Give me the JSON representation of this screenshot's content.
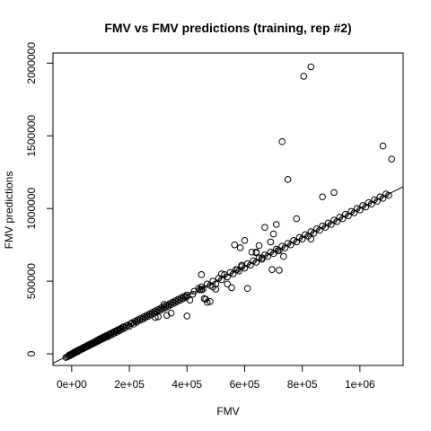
{
  "chart_data": {
    "type": "scatter",
    "title": "FMV vs FMV predictions (training, rep #2)",
    "xlabel": "FMV",
    "ylabel": "FMV predictions",
    "xlim": [
      -65000,
      1150000
    ],
    "ylim": [
      -80000,
      2070000
    ],
    "x_ticks": [
      {
        "value": 0,
        "label": "0e+00"
      },
      {
        "value": 200000,
        "label": "2e+05"
      },
      {
        "value": 400000,
        "label": "4e+05"
      },
      {
        "value": 600000,
        "label": "6e+05"
      },
      {
        "value": 800000,
        "label": "8e+05"
      },
      {
        "value": 1000000,
        "label": "1e+06"
      }
    ],
    "y_ticks": [
      {
        "value": 0,
        "label": "0"
      },
      {
        "value": 500000,
        "label": "500000"
      },
      {
        "value": 1000000,
        "label": "1000000"
      },
      {
        "value": 1500000,
        "label": "1500000"
      },
      {
        "value": 2000000,
        "label": "2000000"
      }
    ],
    "grid": false,
    "marker": "open-circle",
    "reference_line": {
      "intercept": 0,
      "slope": 1.0
    },
    "points": [
      [
        -20000,
        -25000
      ],
      [
        -15000,
        -20000
      ],
      [
        -10000,
        -15000
      ],
      [
        -8000,
        -8000
      ],
      [
        -5000,
        -12000
      ],
      [
        -2000,
        -5000
      ],
      [
        0,
        0
      ],
      [
        3000,
        -3000
      ],
      [
        5000,
        6000
      ],
      [
        8000,
        4000
      ],
      [
        10000,
        12000
      ],
      [
        12000,
        8000
      ],
      [
        15000,
        15000
      ],
      [
        18000,
        20000
      ],
      [
        20000,
        14000
      ],
      [
        22000,
        25000
      ],
      [
        25000,
        22000
      ],
      [
        28000,
        30000
      ],
      [
        30000,
        26000
      ],
      [
        33000,
        35000
      ],
      [
        35000,
        32000
      ],
      [
        38000,
        40000
      ],
      [
        40000,
        36000
      ],
      [
        42000,
        45000
      ],
      [
        45000,
        42000
      ],
      [
        48000,
        50000
      ],
      [
        50000,
        46000
      ],
      [
        52000,
        55000
      ],
      [
        55000,
        52000
      ],
      [
        58000,
        60000
      ],
      [
        60000,
        56000
      ],
      [
        62000,
        65000
      ],
      [
        65000,
        62000
      ],
      [
        68000,
        70000
      ],
      [
        70000,
        66000
      ],
      [
        72000,
        75000
      ],
      [
        75000,
        72000
      ],
      [
        78000,
        80000
      ],
      [
        80000,
        76000
      ],
      [
        82000,
        85000
      ],
      [
        85000,
        82000
      ],
      [
        88000,
        92000
      ],
      [
        90000,
        86000
      ],
      [
        92000,
        95000
      ],
      [
        95000,
        100000
      ],
      [
        98000,
        95000
      ],
      [
        100000,
        105000
      ],
      [
        102000,
        98000
      ],
      [
        105000,
        110000
      ],
      [
        108000,
        104000
      ],
      [
        110000,
        115000
      ],
      [
        112000,
        108000
      ],
      [
        115000,
        120000
      ],
      [
        118000,
        114000
      ],
      [
        120000,
        125000
      ],
      [
        125000,
        118000
      ],
      [
        128000,
        130000
      ],
      [
        130000,
        135000
      ],
      [
        135000,
        128000
      ],
      [
        138000,
        140000
      ],
      [
        140000,
        145000
      ],
      [
        145000,
        138000
      ],
      [
        148000,
        150000
      ],
      [
        150000,
        155000
      ],
      [
        155000,
        148000
      ],
      [
        158000,
        160000
      ],
      [
        160000,
        165000
      ],
      [
        165000,
        158000
      ],
      [
        168000,
        170000
      ],
      [
        170000,
        175000
      ],
      [
        175000,
        168000
      ],
      [
        178000,
        182000
      ],
      [
        180000,
        186000
      ],
      [
        185000,
        178000
      ],
      [
        190000,
        192000
      ],
      [
        195000,
        198000
      ],
      [
        200000,
        190000
      ],
      [
        205000,
        208000
      ],
      [
        210000,
        215000
      ],
      [
        215000,
        205000
      ],
      [
        220000,
        225000
      ],
      [
        225000,
        218000
      ],
      [
        230000,
        235000
      ],
      [
        235000,
        230000
      ],
      [
        240000,
        245000
      ],
      [
        245000,
        238000
      ],
      [
        250000,
        255000
      ],
      [
        255000,
        248000
      ],
      [
        260000,
        265000
      ],
      [
        265000,
        258000
      ],
      [
        270000,
        275000
      ],
      [
        275000,
        268000
      ],
      [
        280000,
        285000
      ],
      [
        285000,
        278000
      ],
      [
        290000,
        295000
      ],
      [
        295000,
        288000
      ],
      [
        300000,
        305000
      ],
      [
        305000,
        298000
      ],
      [
        310000,
        315000
      ],
      [
        315000,
        308000
      ],
      [
        320000,
        325000
      ],
      [
        325000,
        318000
      ],
      [
        330000,
        335000
      ],
      [
        335000,
        328000
      ],
      [
        340000,
        345000
      ],
      [
        345000,
        338000
      ],
      [
        350000,
        355000
      ],
      [
        355000,
        348000
      ],
      [
        360000,
        365000
      ],
      [
        365000,
        358000
      ],
      [
        370000,
        375000
      ],
      [
        375000,
        368000
      ],
      [
        380000,
        385000
      ],
      [
        385000,
        378000
      ],
      [
        390000,
        395000
      ],
      [
        395000,
        388000
      ],
      [
        400000,
        405000
      ],
      [
        420000,
        410000
      ],
      [
        425000,
        430000
      ],
      [
        440000,
        450000
      ],
      [
        445000,
        440000
      ],
      [
        450000,
        460000
      ],
      [
        455000,
        445000
      ],
      [
        470000,
        480000
      ],
      [
        480000,
        470000
      ],
      [
        490000,
        500000
      ],
      [
        500000,
        480000
      ],
      [
        510000,
        520000
      ],
      [
        520000,
        510000
      ],
      [
        530000,
        545000
      ],
      [
        540000,
        530000
      ],
      [
        550000,
        560000
      ],
      [
        560000,
        550000
      ],
      [
        570000,
        580000
      ],
      [
        580000,
        570000
      ],
      [
        590000,
        600000
      ],
      [
        600000,
        590000
      ],
      [
        610000,
        620000
      ],
      [
        620000,
        610000
      ],
      [
        630000,
        640000
      ],
      [
        640000,
        630000
      ],
      [
        650000,
        660000
      ],
      [
        660000,
        650000
      ],
      [
        670000,
        680000
      ],
      [
        680000,
        670000
      ],
      [
        690000,
        700000
      ],
      [
        700000,
        690000
      ],
      [
        710000,
        720000
      ],
      [
        720000,
        710000
      ],
      [
        730000,
        740000
      ],
      [
        740000,
        730000
      ],
      [
        750000,
        760000
      ],
      [
        760000,
        750000
      ],
      [
        770000,
        780000
      ],
      [
        780000,
        770000
      ],
      [
        790000,
        800000
      ],
      [
        800000,
        790000
      ],
      [
        810000,
        820000
      ],
      [
        820000,
        810000
      ],
      [
        830000,
        840000
      ],
      [
        840000,
        830000
      ],
      [
        850000,
        860000
      ],
      [
        860000,
        850000
      ],
      [
        870000,
        880000
      ],
      [
        880000,
        870000
      ],
      [
        890000,
        900000
      ],
      [
        900000,
        890000
      ],
      [
        910000,
        920000
      ],
      [
        920000,
        910000
      ],
      [
        930000,
        940000
      ],
      [
        940000,
        930000
      ],
      [
        950000,
        960000
      ],
      [
        960000,
        950000
      ],
      [
        970000,
        980000
      ],
      [
        980000,
        970000
      ],
      [
        990000,
        1000000
      ],
      [
        1000000,
        990000
      ],
      [
        1010000,
        1020000
      ],
      [
        1020000,
        1010000
      ],
      [
        1030000,
        1040000
      ],
      [
        1040000,
        1030000
      ],
      [
        1050000,
        1060000
      ],
      [
        1060000,
        1050000
      ],
      [
        1070000,
        1080000
      ],
      [
        1080000,
        1070000
      ],
      [
        1090000,
        1100000
      ],
      [
        1100000,
        1090000
      ],
      [
        300000,
        255000
      ],
      [
        330000,
        265000
      ],
      [
        345000,
        280000
      ],
      [
        320000,
        340000
      ],
      [
        290000,
        250000
      ],
      [
        400000,
        260000
      ],
      [
        400000,
        395000
      ],
      [
        410000,
        370000
      ],
      [
        450000,
        440000
      ],
      [
        450000,
        545000
      ],
      [
        460000,
        380000
      ],
      [
        470000,
        355000
      ],
      [
        465000,
        375000
      ],
      [
        480000,
        360000
      ],
      [
        490000,
        460000
      ],
      [
        500000,
        445000
      ],
      [
        520000,
        550000
      ],
      [
        540000,
        480000
      ],
      [
        555000,
        455000
      ],
      [
        565000,
        750000
      ],
      [
        575000,
        580000
      ],
      [
        585000,
        730000
      ],
      [
        590000,
        610000
      ],
      [
        600000,
        780000
      ],
      [
        610000,
        450000
      ],
      [
        625000,
        700000
      ],
      [
        640000,
        700000
      ],
      [
        650000,
        745000
      ],
      [
        660000,
        660000
      ],
      [
        670000,
        870000
      ],
      [
        690000,
        770000
      ],
      [
        700000,
        825000
      ],
      [
        710000,
        890000
      ],
      [
        715000,
        710000
      ],
      [
        720000,
        575000
      ],
      [
        730000,
        1460000
      ],
      [
        735000,
        670000
      ],
      [
        750000,
        1200000
      ],
      [
        780000,
        930000
      ],
      [
        805000,
        1910000
      ],
      [
        830000,
        1975000
      ],
      [
        830000,
        790000
      ],
      [
        870000,
        1080000
      ],
      [
        910000,
        1110000
      ],
      [
        1080000,
        1430000
      ],
      [
        1110000,
        1340000
      ],
      [
        695000,
        580000
      ],
      [
        640000,
        695000
      ]
    ]
  }
}
